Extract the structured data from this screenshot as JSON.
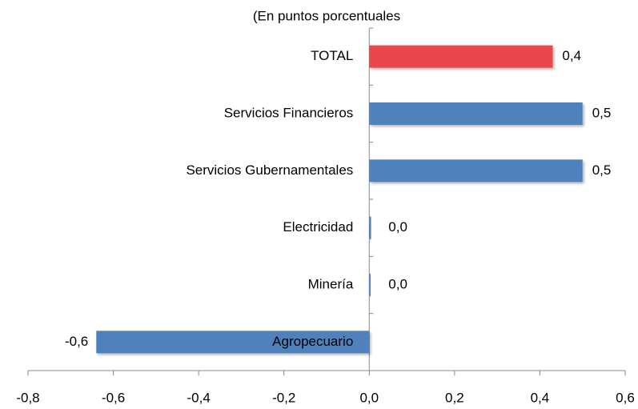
{
  "chart_data": {
    "type": "barh",
    "title": "(En puntos porcentuales",
    "categories": [
      "TOTAL",
      "Servicios Financieros",
      "Servicios Gubernamentales",
      "Electricidad",
      "Minería",
      "Agropecuario"
    ],
    "values": [
      0.43,
      0.5,
      0.5,
      0.004,
      0.003,
      -0.64
    ],
    "value_labels": [
      "0,4",
      "0,5",
      "0,5",
      "0,0",
      "0,0",
      "-0,6"
    ],
    "colors": [
      "#e8474b",
      "#4f81bd",
      "#4f81bd",
      "#4f81bd",
      "#4f81bd",
      "#4f81bd"
    ],
    "xlim": [
      -0.8,
      0.6
    ],
    "xticks": [
      {
        "value": -0.8,
        "label": "-0,8"
      },
      {
        "value": -0.6,
        "label": "-0,6"
      },
      {
        "value": -0.4,
        "label": "-0,4"
      },
      {
        "value": -0.2,
        "label": "-0,2"
      },
      {
        "value": 0,
        "label": "0,0"
      },
      {
        "value": 0.2,
        "label": "0,2"
      },
      {
        "value": 0.4,
        "label": "0,4"
      },
      {
        "value": 0.6,
        "label": "0,6"
      }
    ],
    "grid": false
  }
}
